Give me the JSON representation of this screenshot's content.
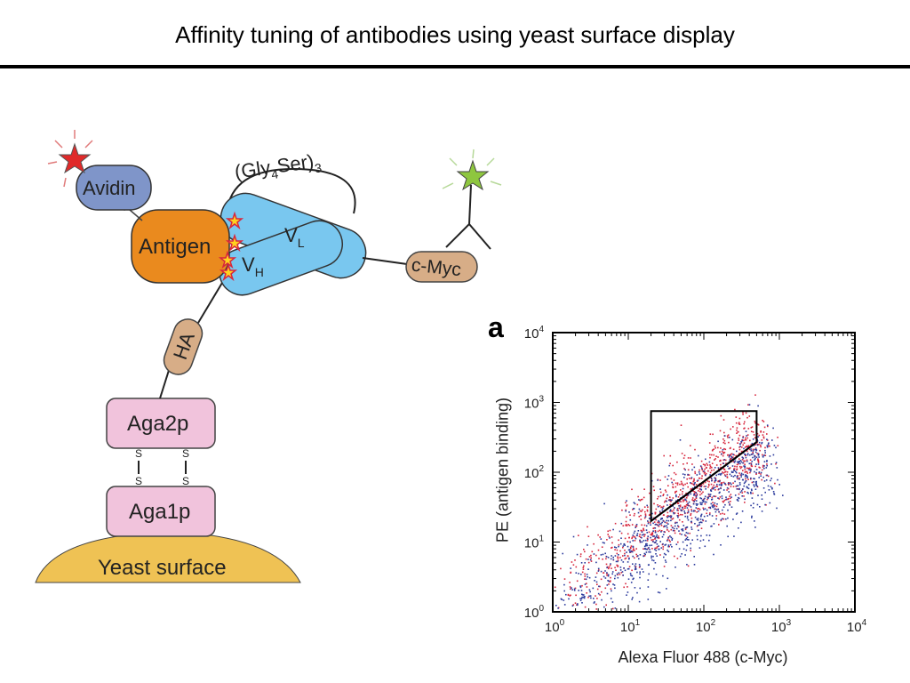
{
  "slide": {
    "title": "Affinity tuning of antibodies using yeast surface display"
  },
  "diagram": {
    "labels": {
      "avidin": "Avidin",
      "antigen": "Antigen",
      "linker_prefix": "(Gly",
      "linker_sub": "4",
      "linker_mid": "Ser)",
      "linker_sub2": "3",
      "vl": "V",
      "vl_sub": "L",
      "vh": "V",
      "vh_sub": "H",
      "cmyc": "c-Myc",
      "ha": "HA",
      "aga2p": "Aga2p",
      "aga1p": "Aga1p",
      "disulfide_s": "S",
      "yeast": "Yeast surface"
    },
    "colors": {
      "avidin": "#7f95c9",
      "antigen": "#ea8a1e",
      "scfv": "#79c7ef",
      "tag": "#d7ad87",
      "aga": "#f1c3dc",
      "yeast": "#efc254",
      "red_star": "#e02a2a",
      "green_star": "#8ec63f"
    }
  },
  "chart_data": {
    "type": "scatter",
    "panel_label": "a",
    "xlabel": "Alexa Fluor 488 (c-Myc)",
    "ylabel": "PE (antigen binding)",
    "xscale": "log",
    "yscale": "log",
    "xlim": [
      1,
      10000
    ],
    "ylim": [
      1,
      10000
    ],
    "x_ticks": [
      {
        "base": "10",
        "exp": "0"
      },
      {
        "base": "10",
        "exp": "1"
      },
      {
        "base": "10",
        "exp": "2"
      },
      {
        "base": "10",
        "exp": "3"
      },
      {
        "base": "10",
        "exp": "4"
      }
    ],
    "y_ticks": [
      {
        "base": "10",
        "exp": "0"
      },
      {
        "base": "10",
        "exp": "1"
      },
      {
        "base": "10",
        "exp": "2"
      },
      {
        "base": "10",
        "exp": "3"
      },
      {
        "base": "10",
        "exp": "4"
      }
    ],
    "series": [
      {
        "color": "#d7263d",
        "trend_log10": {
          "x": [
            0,
            2.7
          ],
          "y": [
            0.15,
            2.45
          ]
        },
        "spread": 0.28,
        "n": 900
      },
      {
        "color": "#2b3a9c",
        "trend_log10": {
          "x": [
            0,
            2.8
          ],
          "y": [
            0.0,
            2.2
          ]
        },
        "spread": 0.3,
        "n": 900
      }
    ],
    "gate": {
      "x": [
        20,
        20,
        500,
        500
      ],
      "y": [
        20,
        750,
        750,
        270
      ]
    },
    "fit_line": {
      "x": [
        20,
        500
      ],
      "y": [
        20,
        270
      ],
      "color": "#000000"
    }
  }
}
